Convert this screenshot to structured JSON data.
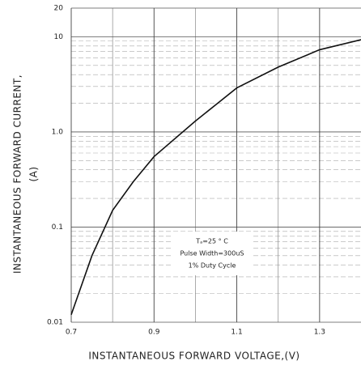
{
  "chart_data": {
    "type": "line",
    "y_label": [
      "INSTANTANEOUS FORWARD CURRENT,",
      "(A)"
    ],
    "x_label": "INSTANTANEOUS FORWARD VOLTAGE,(V)",
    "annotations": [
      "Tₐ=25 ° C",
      "Pulse Width=300uS",
      "1% Duty Cycle"
    ],
    "x": [
      0.7,
      0.75,
      0.8,
      0.85,
      0.9,
      1.0,
      1.1,
      1.2,
      1.3,
      1.4
    ],
    "series": [
      {
        "name": "forward current",
        "color": "#111111",
        "values": [
          0.012,
          0.05,
          0.15,
          0.3,
          0.55,
          1.3,
          2.9,
          4.8,
          7.3,
          9.3
        ]
      }
    ],
    "xlim": [
      0.7,
      1.4
    ],
    "xticks": [
      0.7,
      0.9,
      1.1,
      1.3
    ],
    "ylim": [
      0.01,
      20
    ],
    "yticks": [
      20,
      10,
      {
        "value": 1,
        "label": "1.0"
      },
      0.1,
      0.01
    ],
    "log_y": true,
    "grid": true
  }
}
